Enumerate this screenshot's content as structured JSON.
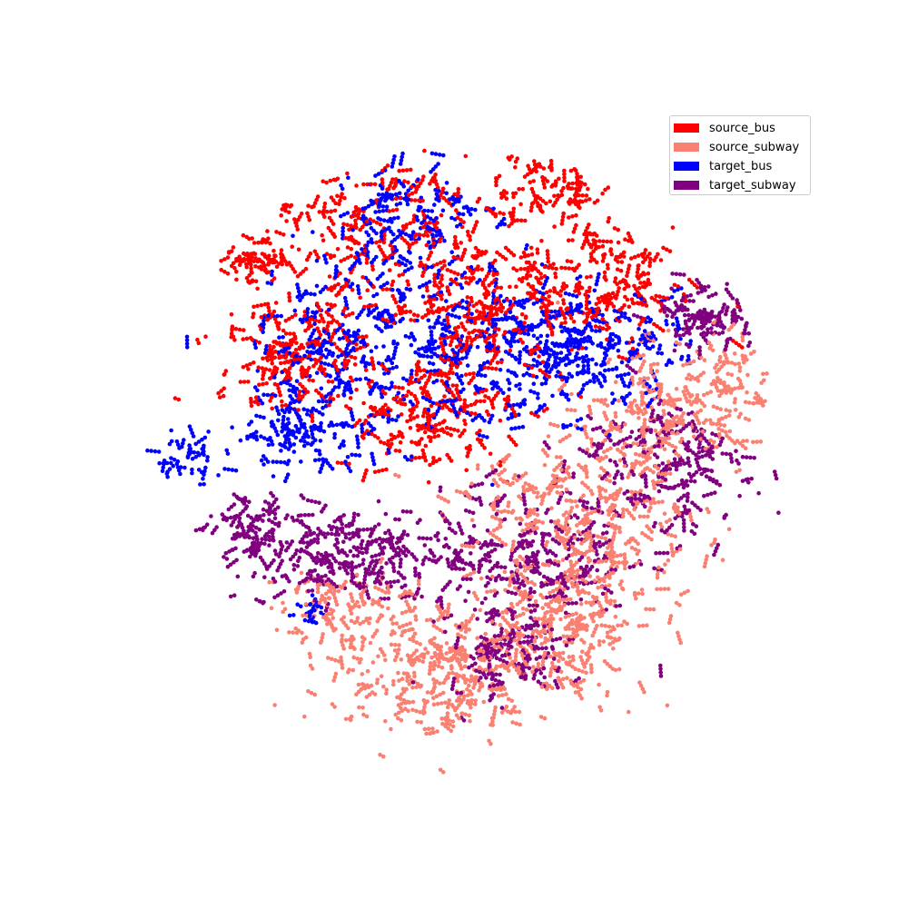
{
  "chart_data": {
    "type": "scatter",
    "title": "",
    "xlabel": "",
    "ylabel": "",
    "axes_visible": false,
    "grid": false,
    "legend_placement": "top-right",
    "marker_size": "small",
    "series": [
      {
        "name": "source_bus",
        "color": "#ff0000",
        "clusters": [
          {
            "center": [
              -3.2,
              8.6
            ],
            "spread": [
              3.8,
              3.1
            ],
            "n": 210
          },
          {
            "center": [
              0.6,
              6.2
            ],
            "spread": [
              3.2,
              2.6
            ],
            "n": 200
          },
          {
            "center": [
              -5.6,
              4.4
            ],
            "spread": [
              1.9,
              1.7
            ],
            "n": 130
          },
          {
            "center": [
              4.6,
              7.0
            ],
            "spread": [
              2.6,
              1.9
            ],
            "n": 120
          },
          {
            "center": [
              -1.2,
              2.4
            ],
            "spread": [
              2.4,
              1.7
            ],
            "n": 130
          },
          {
            "center": [
              -6.8,
              7.8
            ],
            "spread": [
              1.0,
              0.9
            ],
            "n": 45
          },
          {
            "center": [
              2.6,
              10.2
            ],
            "spread": [
              2.0,
              1.1
            ],
            "n": 70
          }
        ]
      },
      {
        "name": "source_subway",
        "color": "#fa8072",
        "clusters": [
          {
            "center": [
              3.6,
              -1.4
            ],
            "spread": [
              3.4,
              2.6
            ],
            "n": 260
          },
          {
            "center": [
              -0.8,
              -6.4
            ],
            "spread": [
              3.0,
              2.2
            ],
            "n": 220
          },
          {
            "center": [
              6.0,
              2.6
            ],
            "spread": [
              2.4,
              2.1
            ],
            "n": 150
          },
          {
            "center": [
              3.0,
              -5.2
            ],
            "spread": [
              2.6,
              1.9
            ],
            "n": 150
          },
          {
            "center": [
              -3.8,
              -4.6
            ],
            "spread": [
              2.0,
              1.7
            ],
            "n": 100
          },
          {
            "center": [
              8.2,
              3.4
            ],
            "spread": [
              0.9,
              1.6
            ],
            "n": 45
          }
        ]
      },
      {
        "name": "target_bus",
        "color": "#0000ff",
        "clusters": [
          {
            "center": [
              -3.2,
              4.8
            ],
            "spread": [
              3.4,
              3.0
            ],
            "n": 230
          },
          {
            "center": [
              1.4,
              4.4
            ],
            "spread": [
              3.0,
              2.4
            ],
            "n": 200
          },
          {
            "center": [
              -1.6,
              9.2
            ],
            "spread": [
              2.4,
              1.9
            ],
            "n": 110
          },
          {
            "center": [
              -5.2,
              1.8
            ],
            "spread": [
              1.9,
              1.3
            ],
            "n": 90
          },
          {
            "center": [
              4.4,
              4.8
            ],
            "spread": [
              2.3,
              1.7
            ],
            "n": 110
          },
          {
            "center": [
              -8.6,
              0.8
            ],
            "spread": [
              0.7,
              1.0
            ],
            "n": 30
          },
          {
            "center": [
              -4.8,
              -4.4
            ],
            "spread": [
              0.6,
              0.5
            ],
            "n": 14
          }
        ]
      },
      {
        "name": "target_subway",
        "color": "#800080",
        "clusters": [
          {
            "center": [
              -3.8,
              -2.4
            ],
            "spread": [
              3.0,
              1.5
            ],
            "n": 200
          },
          {
            "center": [
              1.8,
              -2.6
            ],
            "spread": [
              3.2,
              2.2
            ],
            "n": 190
          },
          {
            "center": [
              6.2,
              0.6
            ],
            "spread": [
              2.4,
              2.4
            ],
            "n": 150
          },
          {
            "center": [
              7.6,
              5.8
            ],
            "spread": [
              1.3,
              0.9
            ],
            "n": 90
          },
          {
            "center": [
              -6.6,
              -1.6
            ],
            "spread": [
              1.2,
              1.2
            ],
            "n": 60
          },
          {
            "center": [
              1.4,
              -5.8
            ],
            "spread": [
              2.0,
              1.5
            ],
            "n": 90
          }
        ]
      }
    ]
  },
  "legend": {
    "items": [
      {
        "label": "source_bus",
        "color": "#ff0000"
      },
      {
        "label": "source_subway",
        "color": "#fa8072"
      },
      {
        "label": "target_bus",
        "color": "#0000ff"
      },
      {
        "label": "target_subway",
        "color": "#800080"
      }
    ]
  }
}
